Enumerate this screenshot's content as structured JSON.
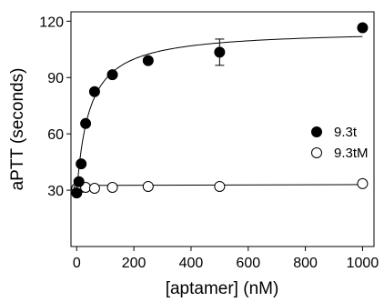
{
  "chart_data": {
    "type": "scatter",
    "xlabel": "[aptamer] (nM)",
    "ylabel": "aPTT (seconds)",
    "xlim": [
      -20,
      1040
    ],
    "ylim": [
      0,
      125
    ],
    "x_ticks": [
      0,
      200,
      400,
      600,
      800,
      1000
    ],
    "y_ticks": [
      30,
      60,
      90,
      120
    ],
    "grid": false,
    "legend_position": "right",
    "series": [
      {
        "name": "9.3t",
        "marker": "filled-circle",
        "color": "#000000",
        "x": [
          0,
          7.8,
          15.6,
          31.25,
          62.5,
          125,
          250,
          500,
          1000
        ],
        "y": [
          28.5,
          34.5,
          44,
          65.5,
          82.5,
          91.5,
          99,
          103.5,
          116.5
        ],
        "error": [
          0,
          0,
          0,
          0,
          0,
          0,
          0,
          7,
          0
        ],
        "fit": {
          "type": "hyperbolic",
          "baseline": 28.5,
          "amplitude": 87,
          "k": 44
        }
      },
      {
        "name": "9.3tM",
        "marker": "open-circle",
        "color": "#000000",
        "x": [
          0,
          7.8,
          15.6,
          31.25,
          62.5,
          125,
          250,
          500,
          1000
        ],
        "y": [
          31,
          31,
          31.5,
          31.5,
          31,
          31.5,
          32,
          32,
          33.5
        ],
        "error": [
          0,
          0,
          0,
          0,
          0,
          0,
          0,
          0,
          0
        ],
        "fit": {
          "type": "linear",
          "start": 32.5,
          "end": 33
        }
      }
    ]
  }
}
